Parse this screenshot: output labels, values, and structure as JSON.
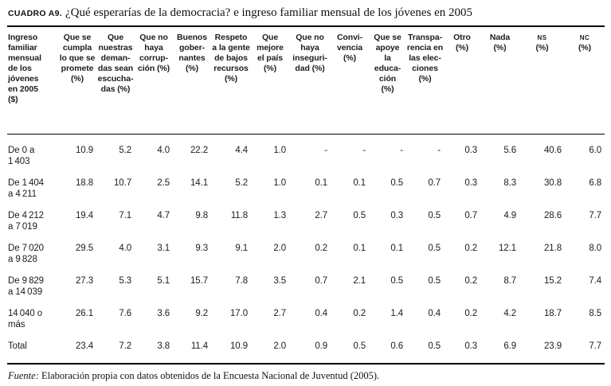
{
  "title": {
    "label": "CUADRO A9.",
    "text": "¿Qué esperarías de la democracia? e ingreso familiar mensual de los jóvenes en 2005"
  },
  "table": {
    "row_header_title": "Ingreso\nfamiliar\nmensual\nde los\njóvenes\nen 2005\n($)",
    "columns": [
      {
        "text": "Que se\ncumpla\nlo que se\npromete\n(%)"
      },
      {
        "text": "Que\nnuestras\ndeman-\ndas sean\nescucha-\ndas (%)"
      },
      {
        "text": "Que no\nhaya\ncorrup-\nción (%)"
      },
      {
        "text": "Buenos\ngober-\nnantes\n(%)"
      },
      {
        "text": "Respeto\na la gente\nde bajos\nrecursos\n(%)"
      },
      {
        "text": "Que\nmejore\nel país\n(%)"
      },
      {
        "text": "Que no\nhaya\ninseguri-\ndad (%)"
      },
      {
        "text": "Convi-\nvencia\n(%)"
      },
      {
        "text": "Que se\napoye\nla\neduca-\nción\n(%)"
      },
      {
        "text": "Transpa-\nrencia en\nlas elec-\nciones\n(%)"
      },
      {
        "text": "Otro\n(%)"
      },
      {
        "text": "Nada\n(%)"
      },
      {
        "abbr": "NS",
        "unit": "(%)"
      },
      {
        "abbr": "NC",
        "unit": "(%)"
      }
    ],
    "rows": [
      {
        "label": "De 0 a\n1 403",
        "values": [
          "10.9",
          "5.2",
          "4.0",
          "22.2",
          "4.4",
          "1.0",
          "-",
          "-",
          "-",
          "-",
          "0.3",
          "5.6",
          "40.6",
          "6.0"
        ]
      },
      {
        "label": "De 1 404\na 4 211",
        "values": [
          "18.8",
          "10.7",
          "2.5",
          "14.1",
          "5.2",
          "1.0",
          "0.1",
          "0.1",
          "0.5",
          "0.7",
          "0.3",
          "8.3",
          "30.8",
          "6.8"
        ]
      },
      {
        "label": "De 4 212\na 7 019",
        "values": [
          "19.4",
          "7.1",
          "4.7",
          "9.8",
          "11.8",
          "1.3",
          "2.7",
          "0.5",
          "0.3",
          "0.5",
          "0.7",
          "4.9",
          "28.6",
          "7.7"
        ]
      },
      {
        "label": "De 7 020\na 9 828",
        "values": [
          "29.5",
          "4.0",
          "3.1",
          "9.3",
          "9.1",
          "2.0",
          "0.2",
          "0.1",
          "0.1",
          "0.5",
          "0.2",
          "12.1",
          "21.8",
          "8.0"
        ]
      },
      {
        "label": "De 9 829\na 14 039",
        "values": [
          "27.3",
          "5.3",
          "5.1",
          "15.7",
          "7.8",
          "3.5",
          "0.7",
          "2.1",
          "0.5",
          "0.5",
          "0.2",
          "8.7",
          "15.2",
          "7.4"
        ]
      },
      {
        "label": "14 040 o\nmás",
        "values": [
          "26.1",
          "7.6",
          "3.6",
          "9.2",
          "17.0",
          "2.7",
          "0.4",
          "0.2",
          "1.4",
          "0.4",
          "0.2",
          "4.2",
          "18.7",
          "8.5"
        ]
      },
      {
        "label": "Total",
        "values": [
          "23.4",
          "7.2",
          "3.8",
          "11.4",
          "10.9",
          "2.0",
          "0.9",
          "0.5",
          "0.6",
          "0.5",
          "0.3",
          "6.9",
          "23.9",
          "7.7"
        ]
      }
    ]
  },
  "source": {
    "label": "Fuente:",
    "text": " Elaboración propia con datos obtenidos de la Encuesta Nacional de Juventud (2005)."
  }
}
